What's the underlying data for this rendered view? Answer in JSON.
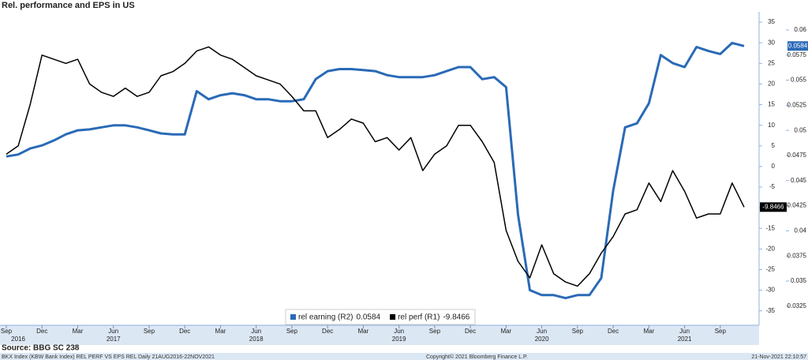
{
  "chart_data": {
    "type": "line",
    "title": "Rel. performance and EPS in US",
    "x": [
      "2016-09",
      "2016-10",
      "2016-11",
      "2016-12",
      "2017-01",
      "2017-02",
      "2017-03",
      "2017-04",
      "2017-05",
      "2017-06",
      "2017-07",
      "2017-08",
      "2017-09",
      "2017-10",
      "2017-11",
      "2017-12",
      "2018-01",
      "2018-02",
      "2018-03",
      "2018-04",
      "2018-05",
      "2018-06",
      "2018-07",
      "2018-08",
      "2018-09",
      "2018-10",
      "2018-11",
      "2018-12",
      "2019-01",
      "2019-02",
      "2019-03",
      "2019-04",
      "2019-05",
      "2019-06",
      "2019-07",
      "2019-08",
      "2019-09",
      "2019-10",
      "2019-11",
      "2019-12",
      "2020-01",
      "2020-02",
      "2020-03",
      "2020-04",
      "2020-05",
      "2020-06",
      "2020-07",
      "2020-08",
      "2020-09",
      "2020-10",
      "2020-11",
      "2020-12",
      "2021-01",
      "2021-02",
      "2021-03",
      "2021-04",
      "2021-05",
      "2021-06",
      "2021-07",
      "2021-08",
      "2021-09",
      "2021-10",
      "2021-11"
    ],
    "series": [
      {
        "name": "rel earning (R2)",
        "color": "#2a6ab6",
        "axis": "y2",
        "values": [
          0.0474,
          0.0476,
          0.0482,
          0.0485,
          0.049,
          0.0496,
          0.05,
          0.0501,
          0.0503,
          0.0505,
          0.0505,
          0.0503,
          0.05,
          0.0497,
          0.0496,
          0.0496,
          0.0539,
          0.0531,
          0.0535,
          0.0537,
          0.0535,
          0.0531,
          0.0531,
          0.0529,
          0.0529,
          0.0531,
          0.0551,
          0.0559,
          0.0561,
          0.0561,
          0.056,
          0.0559,
          0.0555,
          0.0553,
          0.0553,
          0.0553,
          0.0555,
          0.0559,
          0.0563,
          0.0563,
          0.0551,
          0.0553,
          0.0543,
          0.0416,
          0.0341,
          0.0336,
          0.0336,
          0.0333,
          0.0336,
          0.0336,
          0.0353,
          0.044,
          0.0503,
          0.0507,
          0.0527,
          0.0575,
          0.0567,
          0.0563,
          0.0583,
          0.0579,
          0.0576,
          0.0587,
          0.0584
        ]
      },
      {
        "name": "rel perf (R1)",
        "color": "#000000",
        "values": [
          3,
          5,
          15,
          27,
          26,
          25,
          26,
          20,
          18,
          17,
          19,
          17,
          18,
          22,
          23,
          25,
          28,
          29,
          27,
          26,
          24,
          22,
          21,
          20,
          17,
          13.5,
          13.5,
          7,
          9,
          11.5,
          10.5,
          6,
          7,
          4,
          7,
          -1,
          3,
          5,
          10,
          10,
          6,
          1,
          -15.5,
          -23,
          -27,
          -19,
          -26,
          -28,
          -29,
          -26,
          -21,
          -17,
          -11.5,
          -10.5,
          -4,
          -8.5,
          -1,
          -6,
          -12.5,
          -11.5,
          -11.5,
          -4,
          -9.8466
        ]
      }
    ],
    "ylim": [
      -38.5,
      37.5
    ],
    "yticks": [
      35,
      30,
      25,
      20,
      15,
      10,
      5,
      0,
      -5,
      -10,
      -15,
      -20,
      -25,
      -30,
      -35
    ],
    "y2lim": [
      0.0306,
      0.0618
    ],
    "y2ticks": [
      0.06,
      0.0575,
      0.055,
      0.0525,
      0.05,
      0.0475,
      0.045,
      0.0425,
      0.04,
      0.0375,
      0.035,
      0.0325
    ],
    "xticks": [
      {
        "value": "2016-09",
        "label": "Sep"
      },
      {
        "value": "2016-12",
        "label": "Dec"
      },
      {
        "value": "2017-03",
        "label": "Mar"
      },
      {
        "value": "2017-06",
        "label": "Jun"
      },
      {
        "value": "2017-09",
        "label": "Sep"
      },
      {
        "value": "2017-12",
        "label": "Dec"
      },
      {
        "value": "2018-03",
        "label": "Mar"
      },
      {
        "value": "2018-06",
        "label": "Jun"
      },
      {
        "value": "2018-09",
        "label": "Sep"
      },
      {
        "value": "2018-12",
        "label": "Dec"
      },
      {
        "value": "2019-03",
        "label": "Mar"
      },
      {
        "value": "2019-06",
        "label": "Jun"
      },
      {
        "value": "2019-09",
        "label": "Sep"
      },
      {
        "value": "2019-12",
        "label": "Dec"
      },
      {
        "value": "2020-03",
        "label": "Mar"
      },
      {
        "value": "2020-06",
        "label": "Jun"
      },
      {
        "value": "2020-09",
        "label": "Sep"
      },
      {
        "value": "2020-12",
        "label": "Dec"
      },
      {
        "value": "2021-03",
        "label": "Mar"
      },
      {
        "value": "2021-06",
        "label": "Jun"
      },
      {
        "value": "2021-09",
        "label": "Sep"
      }
    ],
    "year_labels": [
      {
        "value": "2016-10",
        "label": "2016"
      },
      {
        "value": "2017-06",
        "label": "2017"
      },
      {
        "value": "2018-06",
        "label": "2018"
      },
      {
        "value": "2019-06",
        "label": "2019"
      },
      {
        "value": "2020-06",
        "label": "2020"
      },
      {
        "value": "2021-06",
        "label": "2021"
      }
    ]
  },
  "source": "Source: BBG SC 238",
  "footer": {
    "description": "BKX Index (KBW Bank Index) REL PERF VS EPS REL  Daily 21AUG2016-22NOV2021",
    "copyright": "Copyright© 2021 Bloomberg Finance L.P.",
    "timestamp": "21-Nov-2021 22:10:57"
  }
}
